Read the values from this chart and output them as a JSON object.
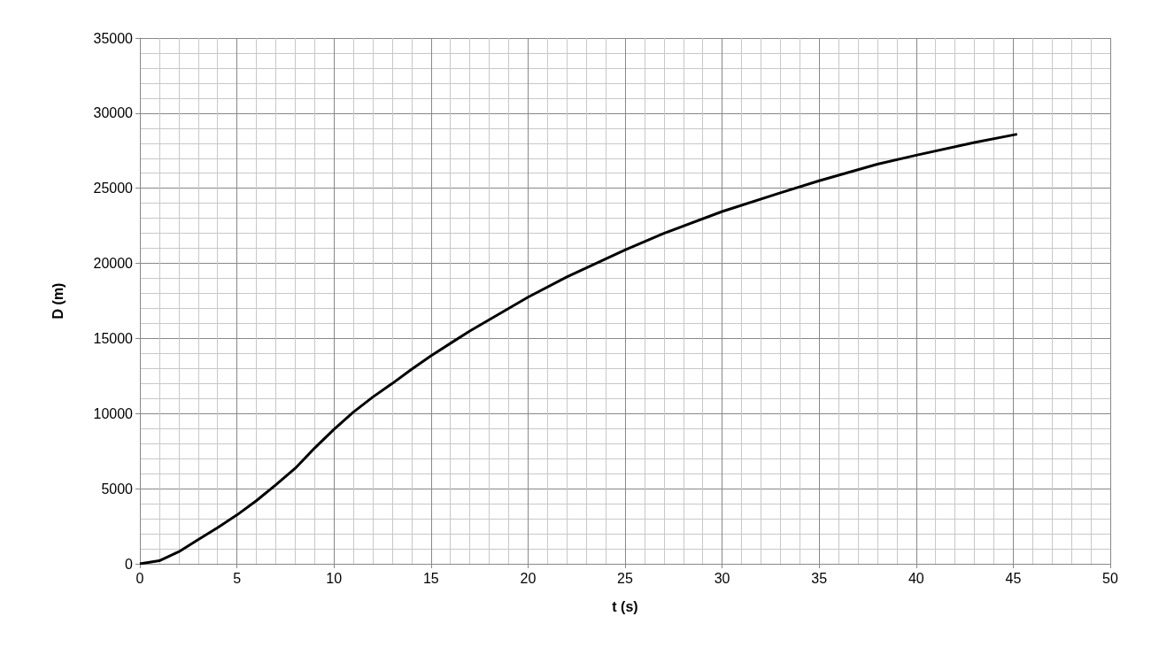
{
  "chart_data": {
    "type": "line",
    "xlabel": "t (s)",
    "ylabel": "D (m)",
    "x": [
      0,
      1,
      2,
      3,
      4,
      5,
      6,
      7,
      8,
      9,
      10,
      11,
      12,
      13,
      14,
      15,
      17,
      20,
      22,
      25,
      27,
      30,
      33,
      35,
      38,
      40,
      43,
      45.2
    ],
    "series": [
      {
        "color": "#000000",
        "values": [
          0,
          200,
          800,
          1600,
          2400,
          3250,
          4200,
          5250,
          6350,
          7700,
          8950,
          10100,
          11100,
          12000,
          12950,
          13850,
          15500,
          17750,
          19100,
          20900,
          22000,
          23450,
          24700,
          25500,
          26600,
          27200,
          28050,
          28600
        ]
      }
    ],
    "xlim": [
      0,
      50
    ],
    "xticks": [
      0,
      5,
      10,
      15,
      20,
      25,
      30,
      35,
      40,
      45,
      50
    ],
    "ylim": [
      0,
      35000
    ],
    "yticks": [
      0,
      5000,
      10000,
      15000,
      20000,
      25000,
      30000,
      35000
    ],
    "grid": true,
    "marker": "none",
    "line_style": "solid"
  }
}
